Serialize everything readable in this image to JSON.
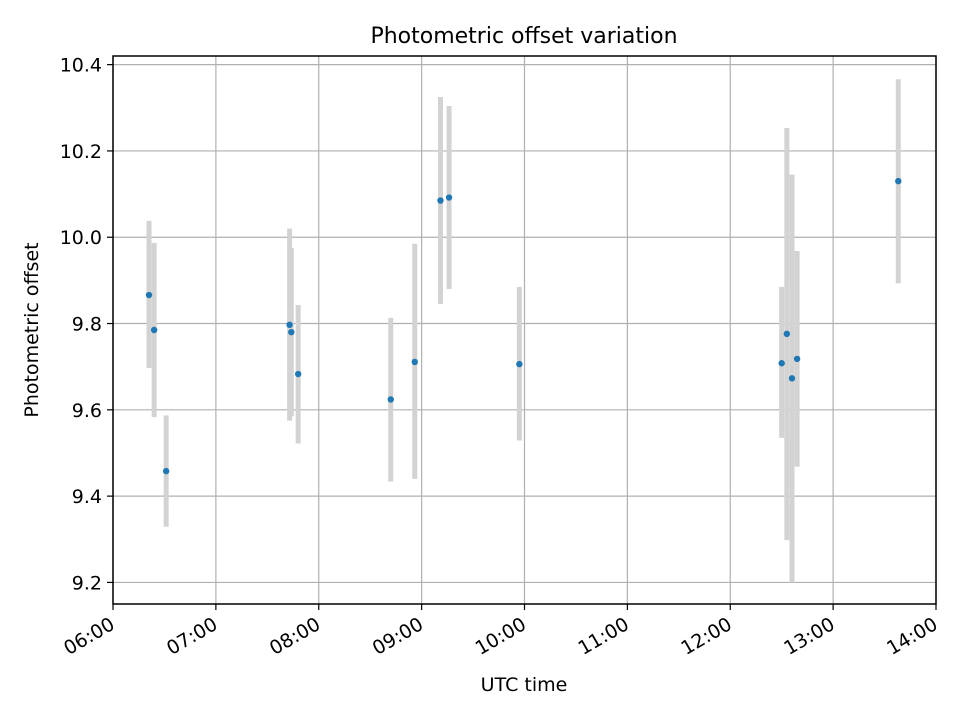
{
  "chart_data": {
    "type": "scatter",
    "title": "Photometric offset variation",
    "xlabel": "UTC time",
    "ylabel": "Photometric offset",
    "x_ticks": [
      "06:00",
      "07:00",
      "08:00",
      "09:00",
      "10:00",
      "11:00",
      "12:00",
      "13:00",
      "14:00"
    ],
    "xlim": [
      "06:00",
      "14:00"
    ],
    "ylim": [
      9.15,
      10.42
    ],
    "y_ticks": [
      9.2,
      9.4,
      9.6,
      9.8,
      10.0,
      10.2,
      10.4
    ],
    "y_tick_labels": [
      "9.2",
      "9.4",
      "9.6",
      "9.8",
      "10.0",
      "10.2",
      "10.4"
    ],
    "grid": true,
    "marker_color": "#1f77b4",
    "errorbar_color": "#d3d3d3",
    "points": [
      {
        "time": "06:21",
        "value": 9.866,
        "low": 9.697,
        "high": 10.038
      },
      {
        "time": "06:24",
        "value": 9.785,
        "low": 9.583,
        "high": 9.987
      },
      {
        "time": "06:31",
        "value": 9.458,
        "low": 9.329,
        "high": 9.587
      },
      {
        "time": "07:43",
        "value": 9.797,
        "low": 9.575,
        "high": 10.02
      },
      {
        "time": "07:44",
        "value": 9.78,
        "low": 9.585,
        "high": 9.975
      },
      {
        "time": "07:48",
        "value": 9.683,
        "low": 9.522,
        "high": 9.843
      },
      {
        "time": "08:42",
        "value": 9.624,
        "low": 9.434,
        "high": 9.813
      },
      {
        "time": "08:56",
        "value": 9.711,
        "low": 9.44,
        "high": 9.985
      },
      {
        "time": "09:11",
        "value": 10.085,
        "low": 9.845,
        "high": 10.325
      },
      {
        "time": "09:16",
        "value": 10.092,
        "low": 9.88,
        "high": 10.304
      },
      {
        "time": "09:57",
        "value": 9.706,
        "low": 9.529,
        "high": 9.885
      },
      {
        "time": "12:30",
        "value": 9.708,
        "low": 9.535,
        "high": 9.885
      },
      {
        "time": "12:33",
        "value": 9.776,
        "low": 9.298,
        "high": 10.253
      },
      {
        "time": "12:36",
        "value": 9.673,
        "low": 9.2,
        "high": 10.145
      },
      {
        "time": "12:39",
        "value": 9.718,
        "low": 9.468,
        "high": 9.968
      },
      {
        "time": "13:38",
        "value": 10.13,
        "low": 9.893,
        "high": 10.366
      }
    ]
  }
}
